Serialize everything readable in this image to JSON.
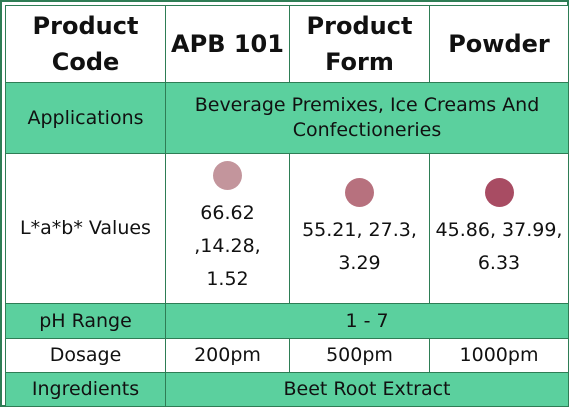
{
  "header": {
    "product_code_label": "Product Code",
    "product_code": "APB 101",
    "product_form_label": "Product Form",
    "product_form": "Powder"
  },
  "applications": {
    "label": "Applications",
    "value": "Beverage Premixes, Ice Creams And Confectioneries"
  },
  "lab_values": {
    "label": "L*a*b* Values",
    "items": [
      {
        "text": "66.62 ,14.28, 1.52",
        "swatch_color": "#c3959c"
      },
      {
        "text": "55.21, 27.3, 3.29",
        "swatch_color": "#b7717e"
      },
      {
        "text": "45.86, 37.99, 6.33",
        "swatch_color": "#a84c63"
      }
    ]
  },
  "ph_range": {
    "label": "pH Range",
    "value": "1 - 7"
  },
  "dosage": {
    "label": "Dosage",
    "values": [
      "200pm",
      "500pm",
      "1000pm"
    ]
  },
  "ingredients": {
    "label": "Ingredients",
    "value": "Beet Root Extract"
  },
  "colors": {
    "accent_green": "#5bd09e",
    "border_green": "#2e7d55"
  }
}
